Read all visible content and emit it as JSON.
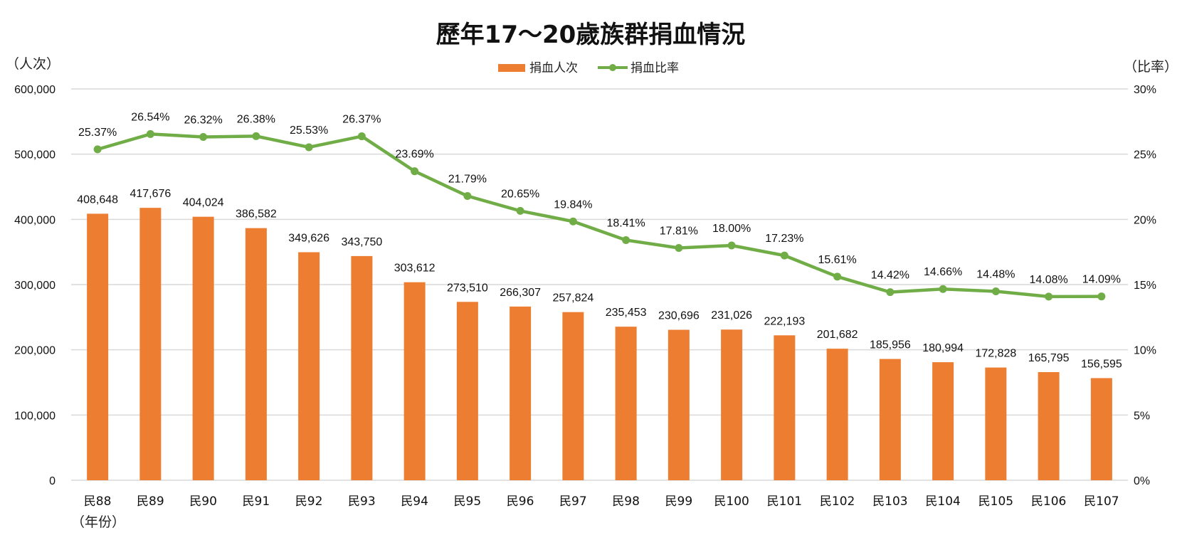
{
  "colors": {
    "bar": "#ED7D31",
    "line": "#70AD47",
    "grid": "#D9D9D9"
  },
  "chart_data": {
    "type": "bar",
    "title": "歷年17～20歲族群捐血情況",
    "ylabel": "（人次）",
    "y2label": "（比率）",
    "xlabel": "（年份）",
    "ylim": [
      0,
      600000
    ],
    "y2lim": [
      0,
      30
    ],
    "y_ticks": [
      "0",
      "100,000",
      "200,000",
      "300,000",
      "400,000",
      "500,000",
      "600,000"
    ],
    "y2_ticks": [
      "0%",
      "5%",
      "10%",
      "15%",
      "20%",
      "25%",
      "30%"
    ],
    "grid": true,
    "legend_position": "top-center",
    "categories": [
      "民88",
      "民89",
      "民90",
      "民91",
      "民92",
      "民93",
      "民94",
      "民95",
      "民96",
      "民97",
      "民98",
      "民99",
      "民100",
      "民101",
      "民102",
      "民103",
      "民104",
      "民105",
      "民106",
      "民107"
    ],
    "series": [
      {
        "name": "捐血人次",
        "type": "bar",
        "axis": "left",
        "values": [
          408648,
          417676,
          404024,
          386582,
          349626,
          343750,
          303612,
          273510,
          266307,
          257824,
          235453,
          230696,
          231026,
          222193,
          201682,
          185956,
          180994,
          172828,
          165795,
          156595
        ],
        "labels": [
          "408,648",
          "417,676",
          "404,024",
          "386,582",
          "349,626",
          "343,750",
          "303,612",
          "273,510",
          "266,307",
          "257,824",
          "235,453",
          "230,696",
          "231,026",
          "222,193",
          "201,682",
          "185,956",
          "180,994",
          "172,828",
          "165,795",
          "156,595"
        ]
      },
      {
        "name": "捐血比率",
        "type": "line",
        "axis": "right",
        "values": [
          25.37,
          26.54,
          26.32,
          26.38,
          25.53,
          26.37,
          23.69,
          21.79,
          20.65,
          19.84,
          18.41,
          17.81,
          18.0,
          17.23,
          15.61,
          14.42,
          14.66,
          14.48,
          14.08,
          14.09
        ],
        "labels": [
          "25.37%",
          "26.54%",
          "26.32%",
          "26.38%",
          "25.53%",
          "26.37%",
          "23.69%",
          "21.79%",
          "20.65%",
          "19.84%",
          "18.41%",
          "17.81%",
          "18.00%",
          "17.23%",
          "15.61%",
          "14.42%",
          "14.66%",
          "14.48%",
          "14.08%",
          "14.09%"
        ]
      }
    ]
  }
}
